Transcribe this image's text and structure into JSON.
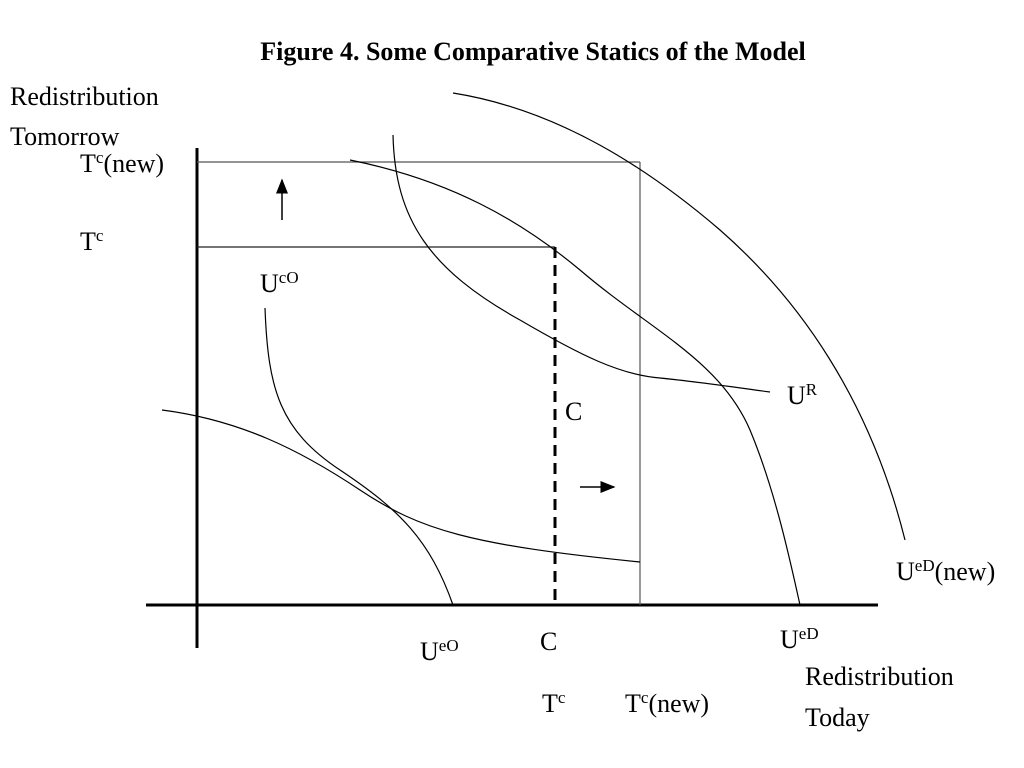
{
  "title": "Figure 4. Some Comparative Statics of the Model",
  "y_axis_label": [
    "Redistribution",
    "Tomorrow"
  ],
  "x_axis_label": [
    "Redistribution",
    "Today"
  ],
  "labels": [
    {
      "base": "T",
      "sup": "c",
      "suffix": "(new)"
    },
    {
      "base": "T",
      "sup": "c"
    },
    {
      "base": "U",
      "sup": "cO"
    },
    {
      "base": "U",
      "sup": "R"
    },
    {
      "base": "C"
    },
    {
      "base": "U",
      "sup": "eD",
      "suffix": "(new)"
    },
    {
      "base": "U",
      "sup": "eO"
    },
    {
      "base": "C"
    },
    {
      "base": "T",
      "sup": "c"
    },
    {
      "base": "T",
      "sup": "c",
      "suffix": "(new)"
    },
    {
      "base": "U",
      "sup": "eD"
    }
  ]
}
